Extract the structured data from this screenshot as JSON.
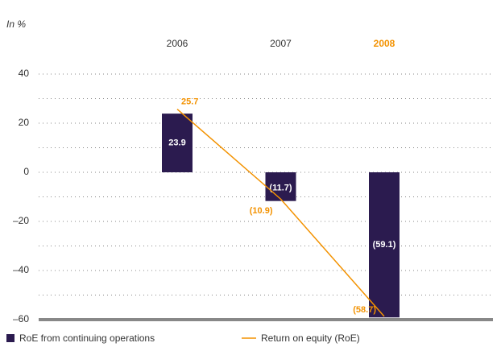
{
  "chart_data": {
    "type": "bar_line",
    "subtitle": "In %",
    "categories": [
      "2006",
      "2007",
      "2008"
    ],
    "highlight_index": 2,
    "highlight_color": "#f39200",
    "series": [
      {
        "name": "RoE from continuing operations",
        "type": "bar",
        "color": "#2b1b4f",
        "values": [
          23.9,
          -11.7,
          -59.1
        ],
        "value_labels": [
          "23.9",
          "(11.7)",
          "(59.1)"
        ]
      },
      {
        "name": "Return on equity (RoE)",
        "type": "line",
        "color": "#f39200",
        "values": [
          25.7,
          -10.9,
          -58.7
        ],
        "value_labels": [
          "25.7",
          "(10.9)",
          "(58.7)"
        ]
      }
    ],
    "ylim": [
      -60,
      40
    ],
    "yticks": [
      {
        "value": 40,
        "label": "40"
      },
      {
        "value": 20,
        "label": "20"
      },
      {
        "value": 0,
        "label": "0"
      },
      {
        "value": -20,
        "label": "–20"
      },
      {
        "value": -40,
        "label": "–40"
      },
      {
        "value": -60,
        "label": "–60"
      }
    ],
    "minor_yticks": [
      30,
      10,
      -10,
      -30,
      -50
    ],
    "grid": true
  }
}
